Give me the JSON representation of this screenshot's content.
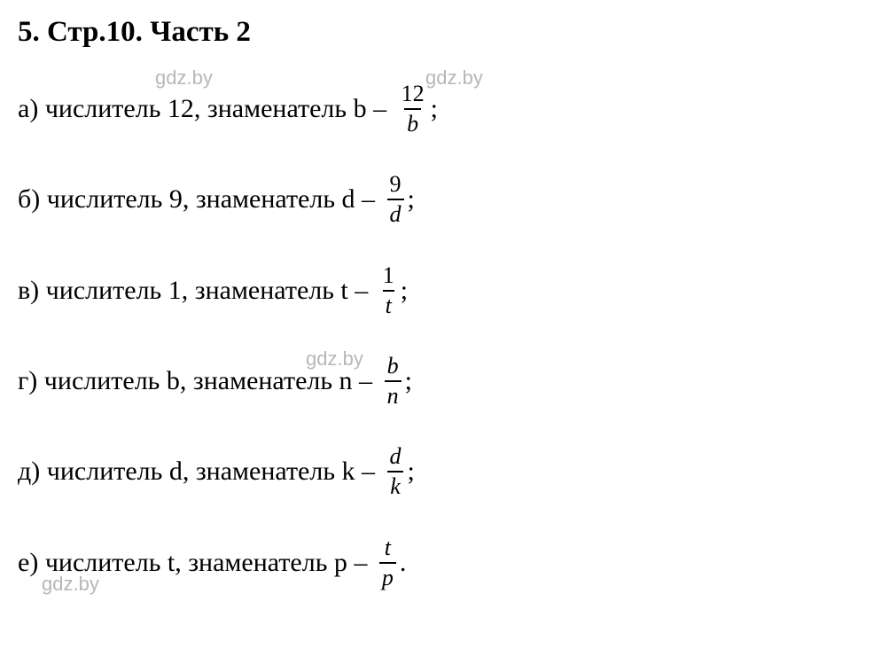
{
  "title": "5. Стр.10. Часть 2",
  "watermark_text": "gdz.by",
  "rows": [
    {
      "label": "а)",
      "text": "числитель 12, знаменатель b – ",
      "num": "12",
      "den": "b",
      "tail": ";",
      "den_italic": true,
      "num_italic": false
    },
    {
      "label": "б)",
      "text": "числитель 9, знаменатель d – ",
      "num": "9",
      "den": "d",
      "tail": ";",
      "den_italic": true,
      "num_italic": false
    },
    {
      "label": "в)",
      "text": "числитель 1, знаменатель t – ",
      "num": "1",
      "den": "t",
      "tail": ";",
      "den_italic": true,
      "num_italic": false
    },
    {
      "label": "г)",
      "text": "числитель b, знаменатель n – ",
      "num": "b",
      "den": "n",
      "tail": ";",
      "den_italic": true,
      "num_italic": true
    },
    {
      "label": "д)",
      "text": "числитель d, знаменатель k – ",
      "num": "d",
      "den": "k",
      "tail": ";",
      "den_italic": true,
      "num_italic": true
    },
    {
      "label": "е)",
      "text": "числитель t, знаменатель p – ",
      "num": "t",
      "den": "p",
      "tail": ".",
      "den_italic": true,
      "num_italic": true
    }
  ]
}
